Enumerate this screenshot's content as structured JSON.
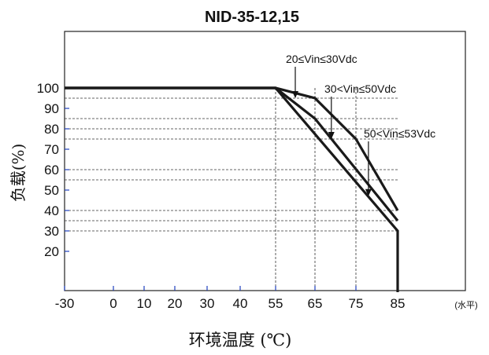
{
  "chart_data": {
    "type": "line",
    "title": "NID-35-12,15",
    "ylabel": "负载(%)",
    "xlabel": "环境温度 (℃)",
    "x_axis_note": "(水平)",
    "xlim": [
      -30,
      85
    ],
    "ylim": [
      10,
      100
    ],
    "x_ticks": [
      {
        "label": "-30",
        "value": -30
      },
      {
        "label": "0",
        "value": 0
      },
      {
        "label": "10",
        "value": 10
      },
      {
        "label": "20",
        "value": 20
      },
      {
        "label": "30",
        "value": 30
      },
      {
        "label": "40",
        "value": 40
      },
      {
        "label": "55",
        "value": 55
      },
      {
        "label": "65",
        "value": 65
      },
      {
        "label": "75",
        "value": 75
      },
      {
        "label": "85",
        "value": 85
      }
    ],
    "y_ticks": [
      {
        "label": "100",
        "value": 100
      },
      {
        "label": "90",
        "value": 90
      },
      {
        "label": "80",
        "value": 80
      },
      {
        "label": "70",
        "value": 70
      },
      {
        "label": "60",
        "value": 60
      },
      {
        "label": "50",
        "value": 50
      },
      {
        "label": "40",
        "value": 40
      },
      {
        "label": "30",
        "value": 30
      },
      {
        "label": "20",
        "value": 20
      }
    ],
    "series": [
      {
        "name": "20≤Vin≤30Vdc",
        "x": [
          -30,
          55,
          85,
          85
        ],
        "y": [
          100,
          100,
          30,
          0
        ]
      },
      {
        "name": "30<Vin≤50Vdc",
        "x": [
          -30,
          55,
          65,
          85
        ],
        "y": [
          100,
          100,
          85,
          35
        ]
      },
      {
        "name": "50<Vin≤53Vdc",
        "x": [
          -30,
          55,
          65,
          75,
          85
        ],
        "y": [
          100,
          100,
          95,
          75,
          40
        ]
      }
    ],
    "reference_lines": {
      "horizontal": [
        95,
        85,
        80,
        75,
        60,
        55,
        40,
        35,
        30
      ],
      "vertical": [
        55,
        65,
        75
      ]
    },
    "annotations": [
      {
        "text": "20≤Vin≤30Vdc",
        "points_to": [
          60,
          95
        ]
      },
      {
        "text": "30<Vin≤50Vdc",
        "points_to": [
          69,
          75
        ]
      },
      {
        "text": "50<Vin≤53Vdc",
        "points_to": [
          78,
          47
        ]
      }
    ],
    "line_color": "#1a1a1a",
    "tick_color": "#1f3fbf",
    "grid": false
  }
}
